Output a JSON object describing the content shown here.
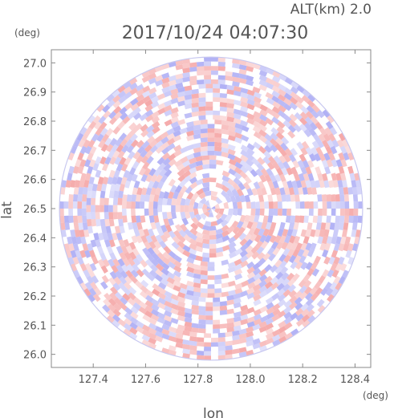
{
  "chart_data": {
    "type": "heatmap",
    "title": "2017/10/24 04:07:30",
    "subtitle": "ALT(km)  2.0",
    "xlabel": "lon",
    "ylabel": "lat",
    "xunit": "(deg)",
    "yunit": "(deg)",
    "xlim": [
      127.24,
      128.46
    ],
    "ylim": [
      25.955,
      27.045
    ],
    "xticks": [
      127.4,
      127.6,
      127.8,
      128.0,
      128.2,
      128.4
    ],
    "xtick_labels": [
      "127.4",
      "127.6",
      "127.8",
      "128.0",
      "128.2",
      "128.4"
    ],
    "yticks": [
      26.0,
      26.1,
      26.2,
      26.3,
      26.4,
      26.5,
      26.6,
      26.7,
      26.8,
      26.9,
      27.0
    ],
    "ytick_labels": [
      "26.0",
      "26.1",
      "26.2",
      "26.3",
      "26.4",
      "26.5",
      "26.6",
      "26.7",
      "26.8",
      "26.9",
      "27.0"
    ],
    "center": {
      "lon": 127.85,
      "lat": 26.5
    },
    "radius_deg_lat": 0.52,
    "grid": false,
    "colors": {
      "positive": "#f4a0a0",
      "negative": "#a8a8f4",
      "neutral": "#ffffff"
    }
  }
}
